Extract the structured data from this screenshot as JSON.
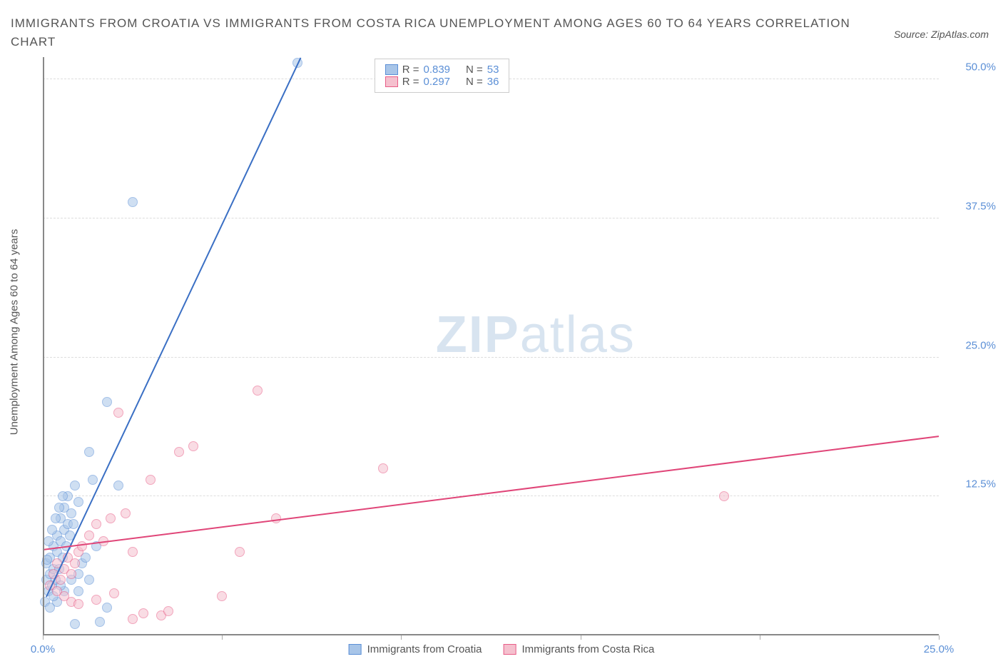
{
  "title": "IMMIGRANTS FROM CROATIA VS IMMIGRANTS FROM COSTA RICA UNEMPLOYMENT AMONG AGES 60 TO 64 YEARS CORRELATION CHART",
  "source": "Source: ZipAtlas.com",
  "watermark_zip": "ZIP",
  "watermark_atlas": "atlas",
  "y_axis_label": "Unemployment Among Ages 60 to 64 years",
  "chart": {
    "type": "scatter",
    "xlim": [
      0,
      25
    ],
    "ylim": [
      0,
      52
    ],
    "x_ticks": [
      0,
      5,
      10,
      15,
      20,
      25
    ],
    "x_tick_labels": [
      "0.0%",
      "",
      "",
      "",
      "",
      "25.0%"
    ],
    "y_ticks": [
      12.5,
      25.0,
      37.5,
      50.0
    ],
    "y_tick_labels": [
      "12.5%",
      "25.0%",
      "37.5%",
      "50.0%"
    ],
    "grid_color": "#dddddd",
    "background_color": "#ffffff",
    "point_radius": 7,
    "point_opacity": 0.55
  },
  "series": [
    {
      "name": "Immigrants from Croatia",
      "color_fill": "#a8c5e8",
      "color_stroke": "#5b8fd6",
      "line_color": "#3a6fc4",
      "R": "0.839",
      "N": "53",
      "trend": {
        "x1": 0.1,
        "y1": 3.5,
        "x2": 7.2,
        "y2": 52.0
      },
      "points": [
        [
          0.05,
          3.0
        ],
        [
          0.1,
          5.0
        ],
        [
          0.1,
          6.5
        ],
        [
          0.15,
          4.0
        ],
        [
          0.2,
          5.5
        ],
        [
          0.2,
          7.0
        ],
        [
          0.25,
          4.5
        ],
        [
          0.3,
          6.0
        ],
        [
          0.3,
          8.0
        ],
        [
          0.35,
          5.0
        ],
        [
          0.4,
          7.5
        ],
        [
          0.4,
          9.0
        ],
        [
          0.45,
          6.0
        ],
        [
          0.5,
          8.5
        ],
        [
          0.5,
          10.5
        ],
        [
          0.55,
          7.0
        ],
        [
          0.6,
          9.5
        ],
        [
          0.6,
          11.5
        ],
        [
          0.65,
          8.0
        ],
        [
          0.7,
          10.0
        ],
        [
          0.7,
          12.5
        ],
        [
          0.75,
          9.0
        ],
        [
          0.8,
          11.0
        ],
        [
          0.85,
          10.0
        ],
        [
          0.9,
          13.5
        ],
        [
          1.0,
          12.0
        ],
        [
          1.0,
          5.5
        ],
        [
          1.1,
          6.5
        ],
        [
          1.2,
          7.0
        ],
        [
          1.3,
          16.5
        ],
        [
          1.3,
          5.0
        ],
        [
          1.4,
          14.0
        ],
        [
          1.5,
          8.0
        ],
        [
          0.4,
          3.0
        ],
        [
          0.6,
          4.0
        ],
        [
          0.3,
          3.5
        ],
        [
          0.5,
          4.5
        ],
        [
          0.8,
          5.0
        ],
        [
          1.0,
          4.0
        ],
        [
          0.2,
          2.5
        ],
        [
          0.15,
          8.5
        ],
        [
          0.25,
          9.5
        ],
        [
          0.35,
          10.5
        ],
        [
          0.45,
          11.5
        ],
        [
          0.55,
          12.5
        ],
        [
          1.8,
          2.5
        ],
        [
          2.5,
          39.0
        ],
        [
          1.8,
          21.0
        ],
        [
          2.1,
          13.5
        ],
        [
          0.9,
          1.0
        ],
        [
          1.6,
          1.2
        ],
        [
          7.1,
          51.5
        ],
        [
          0.12,
          6.8
        ]
      ]
    },
    {
      "name": "Immigrants from Costa Rica",
      "color_fill": "#f5c0ce",
      "color_stroke": "#e85d87",
      "line_color": "#e04578",
      "R": "0.297",
      "N": "36",
      "trend": {
        "x1": 0.0,
        "y1": 7.8,
        "x2": 25.0,
        "y2": 18.0
      },
      "points": [
        [
          0.2,
          4.5
        ],
        [
          0.3,
          5.5
        ],
        [
          0.4,
          6.5
        ],
        [
          0.5,
          5.0
        ],
        [
          0.6,
          6.0
        ],
        [
          0.7,
          7.0
        ],
        [
          0.8,
          5.5
        ],
        [
          0.9,
          6.5
        ],
        [
          1.0,
          7.5
        ],
        [
          1.1,
          8.0
        ],
        [
          1.3,
          9.0
        ],
        [
          1.5,
          10.0
        ],
        [
          1.7,
          8.5
        ],
        [
          1.9,
          10.5
        ],
        [
          2.1,
          20.0
        ],
        [
          2.3,
          11.0
        ],
        [
          2.5,
          7.5
        ],
        [
          2.8,
          2.0
        ],
        [
          3.0,
          14.0
        ],
        [
          3.3,
          1.8
        ],
        [
          3.5,
          2.2
        ],
        [
          3.8,
          16.5
        ],
        [
          4.2,
          17.0
        ],
        [
          5.0,
          3.5
        ],
        [
          5.5,
          7.5
        ],
        [
          6.0,
          22.0
        ],
        [
          6.5,
          10.5
        ],
        [
          9.5,
          15.0
        ],
        [
          19.0,
          12.5
        ],
        [
          0.4,
          4.0
        ],
        [
          0.6,
          3.5
        ],
        [
          0.8,
          3.0
        ],
        [
          1.0,
          2.8
        ],
        [
          1.5,
          3.2
        ],
        [
          2.0,
          3.8
        ],
        [
          2.5,
          1.5
        ]
      ]
    }
  ],
  "legend_labels": {
    "R": "R",
    "N": "N",
    "eq": "="
  }
}
